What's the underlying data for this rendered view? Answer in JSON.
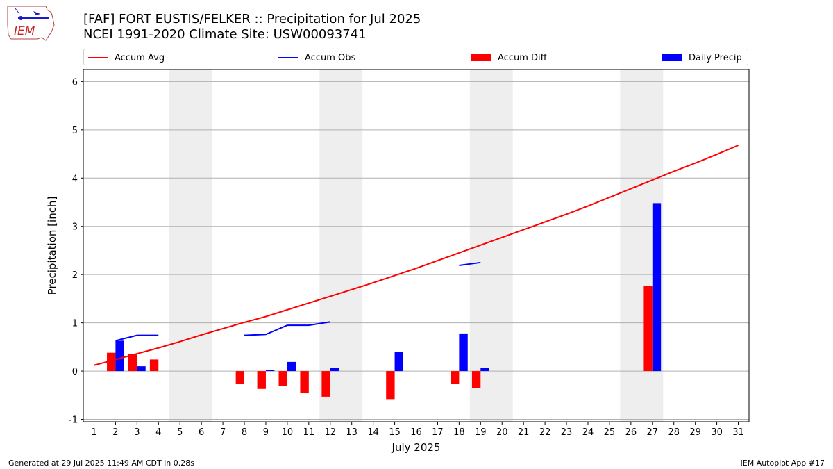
{
  "header": {
    "title_line1": "[FAF] FORT EUSTIS/FELKER :: Precipitation for Jul 2025",
    "title_line2": "NCEI 1991-2020 Climate Site: USW00093741",
    "logo_text": "IEM"
  },
  "footer": {
    "left": "Generated at 29 Jul 2025 11:49 AM CDT in 0.28s",
    "right": "IEM Autoplot App #17"
  },
  "colors": {
    "avg": "#ff0000",
    "obs": "#0000ff",
    "diff": "#ff0000",
    "daily": "#0000ff",
    "weekend": "#eeeeee",
    "grid": "#b0b0b0"
  },
  "chart_data": {
    "type": "bar",
    "xlabel": "July 2025",
    "ylabel": "Precipitation [inch]",
    "xlim": [
      0.5,
      31.5
    ],
    "ylim": [
      -1.05,
      6.25
    ],
    "yticks": [
      -1,
      0,
      1,
      2,
      3,
      4,
      5,
      6
    ],
    "x": [
      1,
      2,
      3,
      4,
      5,
      6,
      7,
      8,
      9,
      10,
      11,
      12,
      13,
      14,
      15,
      16,
      17,
      18,
      19,
      20,
      21,
      22,
      23,
      24,
      25,
      26,
      27,
      28,
      29,
      30,
      31
    ],
    "grid": "horizontal",
    "legend_placement": "top",
    "shaded_days": [
      [
        5,
        6
      ],
      [
        12,
        13
      ],
      [
        19,
        20
      ],
      [
        26,
        27
      ]
    ],
    "series": [
      {
        "name": "Accum Avg",
        "kind": "line",
        "values": [
          0.12,
          0.24,
          0.36,
          0.48,
          0.61,
          0.75,
          0.88,
          1.01,
          1.13,
          1.27,
          1.41,
          1.55,
          1.69,
          1.83,
          1.98,
          2.13,
          2.29,
          2.45,
          2.61,
          2.77,
          2.93,
          3.09,
          3.25,
          3.42,
          3.6,
          3.78,
          3.96,
          4.14,
          4.31,
          4.49,
          4.68
        ]
      },
      {
        "name": "Accum Obs",
        "kind": "line",
        "values": [
          null,
          0.63,
          0.74,
          0.74,
          null,
          null,
          null,
          0.74,
          0.76,
          0.95,
          0.95,
          1.02,
          null,
          null,
          null,
          null,
          null,
          2.19,
          2.25,
          null,
          null,
          null,
          null,
          null,
          null,
          null,
          null,
          null,
          null,
          null,
          null
        ]
      },
      {
        "name": "Accum Diff",
        "kind": "bar",
        "values": [
          null,
          0.38,
          0.36,
          0.24,
          null,
          null,
          null,
          -0.26,
          -0.37,
          -0.31,
          -0.46,
          -0.53,
          null,
          null,
          -0.58,
          null,
          null,
          -0.26,
          -0.35,
          null,
          null,
          null,
          null,
          null,
          null,
          null,
          1.77,
          null,
          null,
          null,
          null
        ]
      },
      {
        "name": "Daily Precip",
        "kind": "bar",
        "values": [
          null,
          0.63,
          0.1,
          null,
          null,
          null,
          null,
          null,
          0.02,
          0.19,
          null,
          0.07,
          null,
          null,
          0.39,
          null,
          null,
          0.78,
          0.06,
          null,
          null,
          null,
          null,
          null,
          null,
          null,
          3.48,
          null,
          null,
          null,
          null
        ]
      }
    ]
  }
}
